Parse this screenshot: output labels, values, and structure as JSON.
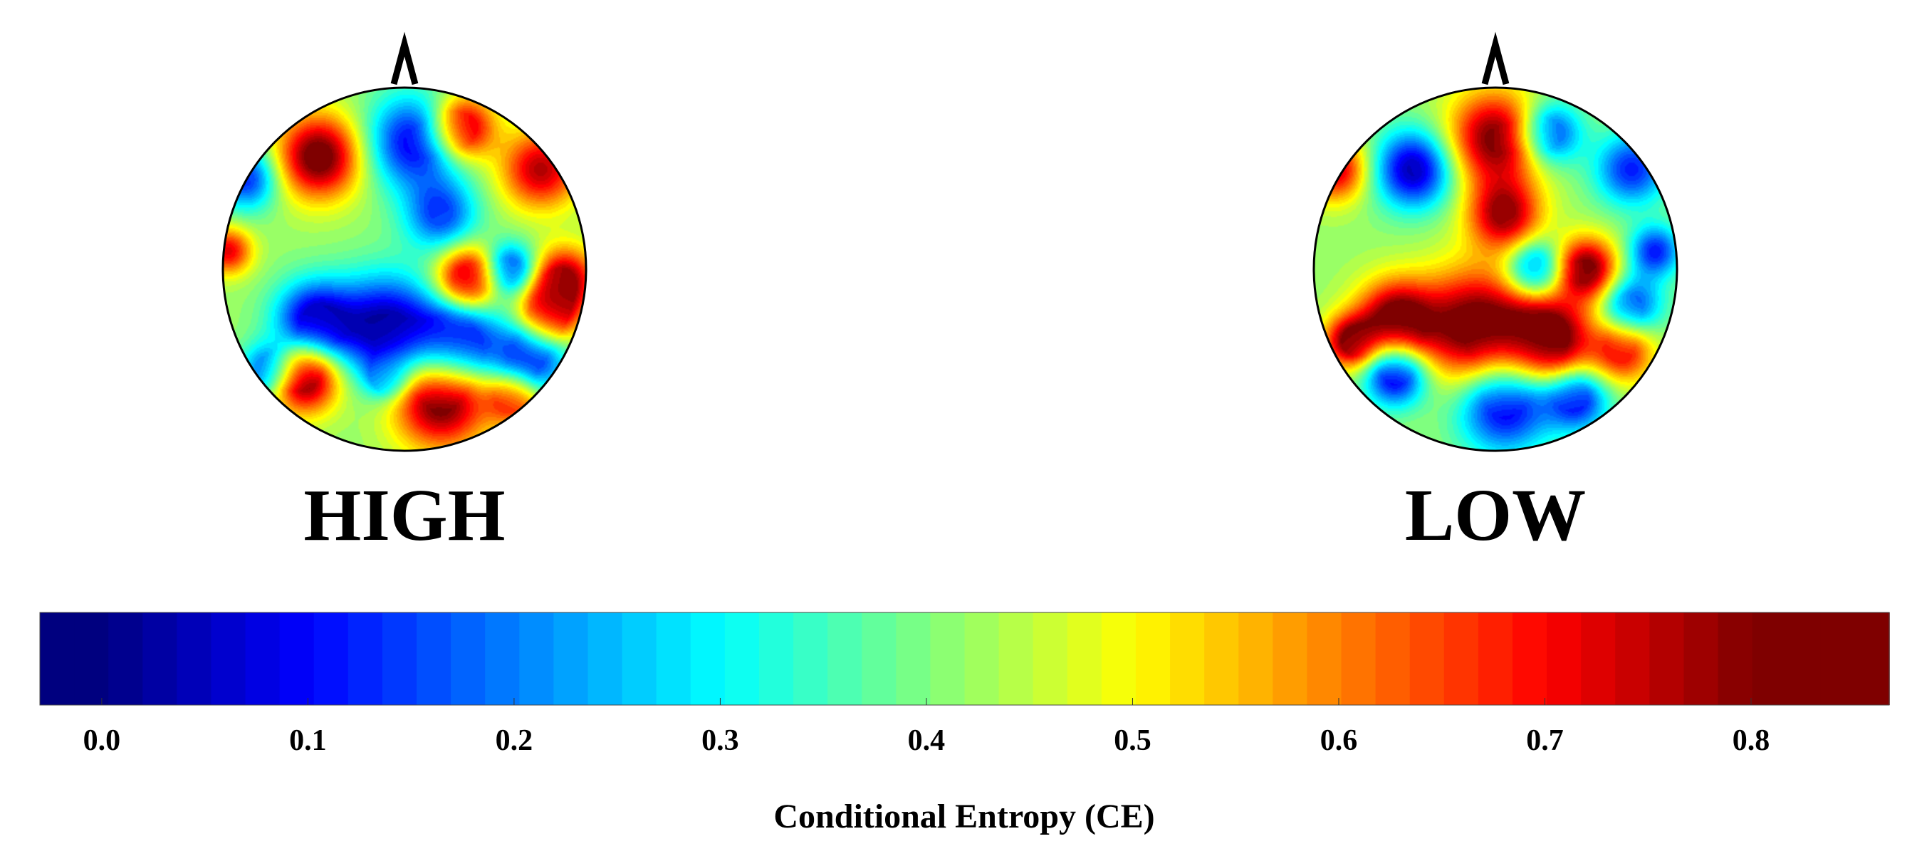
{
  "chart_data": {
    "type": "heatmap",
    "subtype": "scalp-topography",
    "colormap": "jet",
    "colormap_stops": [
      "#00007f",
      "#0000ff",
      "#007fff",
      "#00ffff",
      "#7fff7f",
      "#ffff00",
      "#ff7f00",
      "#ff0000",
      "#7f0000"
    ],
    "value_range": [
      0.0,
      0.8
    ],
    "colorbar": {
      "label": "Conditional Entropy (CE)",
      "ticks": [
        0.0,
        0.1,
        0.2,
        0.3,
        0.4,
        0.5,
        0.6,
        0.7,
        0.8
      ],
      "tick_labels": [
        "0.0",
        "0.1",
        "0.2",
        "0.3",
        "0.4",
        "0.5",
        "0.6",
        "0.7",
        "0.8"
      ],
      "range": [
        -0.03,
        0.867
      ],
      "levels": 54
    },
    "maps": [
      {
        "label": "HIGH",
        "nose_marker": "^",
        "blobs": [
          {
            "u": -0.47,
            "v": -0.62,
            "r": 0.16,
            "value": 0.85
          },
          {
            "u": 0.05,
            "v": -0.7,
            "r": 0.18,
            "value": 0.08
          },
          {
            "u": 0.32,
            "v": -0.78,
            "r": 0.12,
            "value": 0.82
          },
          {
            "u": 0.75,
            "v": -0.55,
            "r": 0.15,
            "value": 0.76
          },
          {
            "u": -0.87,
            "v": -0.5,
            "r": 0.12,
            "value": 0.12
          },
          {
            "u": 0.2,
            "v": -0.3,
            "r": 0.14,
            "value": 0.15
          },
          {
            "u": 0.35,
            "v": 0.05,
            "r": 0.12,
            "value": 0.82
          },
          {
            "u": 0.58,
            "v": 0.0,
            "r": 0.1,
            "value": 0.1
          },
          {
            "u": 0.88,
            "v": 0.05,
            "r": 0.12,
            "value": 0.78
          },
          {
            "u": 0.8,
            "v": 0.25,
            "r": 0.12,
            "value": 0.8
          },
          {
            "u": -0.97,
            "v": -0.1,
            "r": 0.09,
            "value": 0.72
          },
          {
            "u": -0.5,
            "v": 0.28,
            "r": 0.15,
            "value": 0.05
          },
          {
            "u": -0.1,
            "v": 0.32,
            "r": 0.2,
            "value": 0.02
          },
          {
            "u": 0.3,
            "v": 0.4,
            "r": 0.16,
            "value": 0.05
          },
          {
            "u": 0.7,
            "v": 0.48,
            "r": 0.14,
            "value": 0.08
          },
          {
            "u": -0.55,
            "v": 0.6,
            "r": 0.13,
            "value": 0.86
          },
          {
            "u": -0.75,
            "v": 0.55,
            "r": 0.1,
            "value": 0.12
          },
          {
            "u": 0.2,
            "v": 0.72,
            "r": 0.18,
            "value": 0.86
          },
          {
            "u": 0.6,
            "v": 0.72,
            "r": 0.1,
            "value": 0.7
          },
          {
            "u": -0.1,
            "v": 0.6,
            "r": 0.08,
            "value": 0.22
          }
        ]
      },
      {
        "label": "LOW",
        "nose_marker": "^",
        "blobs": [
          {
            "u": -0.45,
            "v": -0.55,
            "r": 0.15,
            "value": 0.03
          },
          {
            "u": 0.0,
            "v": -0.72,
            "r": 0.18,
            "value": 0.82
          },
          {
            "u": 0.3,
            "v": -0.75,
            "r": 0.12,
            "value": 0.1
          },
          {
            "u": 0.75,
            "v": -0.55,
            "r": 0.14,
            "value": 0.12
          },
          {
            "u": -0.88,
            "v": -0.55,
            "r": 0.12,
            "value": 0.75
          },
          {
            "u": 0.05,
            "v": -0.3,
            "r": 0.14,
            "value": 0.78
          },
          {
            "u": 0.22,
            "v": 0.0,
            "r": 0.11,
            "value": 0.12
          },
          {
            "u": 0.5,
            "v": 0.0,
            "r": 0.12,
            "value": 0.84
          },
          {
            "u": 0.75,
            "v": 0.2,
            "r": 0.12,
            "value": 0.14
          },
          {
            "u": 0.88,
            "v": -0.1,
            "r": 0.1,
            "value": 0.12
          },
          {
            "u": -0.55,
            "v": 0.28,
            "r": 0.15,
            "value": 0.84
          },
          {
            "u": -0.1,
            "v": 0.32,
            "r": 0.22,
            "value": 0.86
          },
          {
            "u": 0.3,
            "v": 0.38,
            "r": 0.16,
            "value": 0.86
          },
          {
            "u": 0.7,
            "v": 0.45,
            "r": 0.12,
            "value": 0.72
          },
          {
            "u": -0.55,
            "v": 0.58,
            "r": 0.12,
            "value": 0.02
          },
          {
            "u": 0.05,
            "v": 0.75,
            "r": 0.18,
            "value": 0.05
          },
          {
            "u": 0.45,
            "v": 0.72,
            "r": 0.12,
            "value": 0.1
          },
          {
            "u": -0.8,
            "v": 0.4,
            "r": 0.1,
            "value": 0.8
          }
        ]
      }
    ]
  }
}
